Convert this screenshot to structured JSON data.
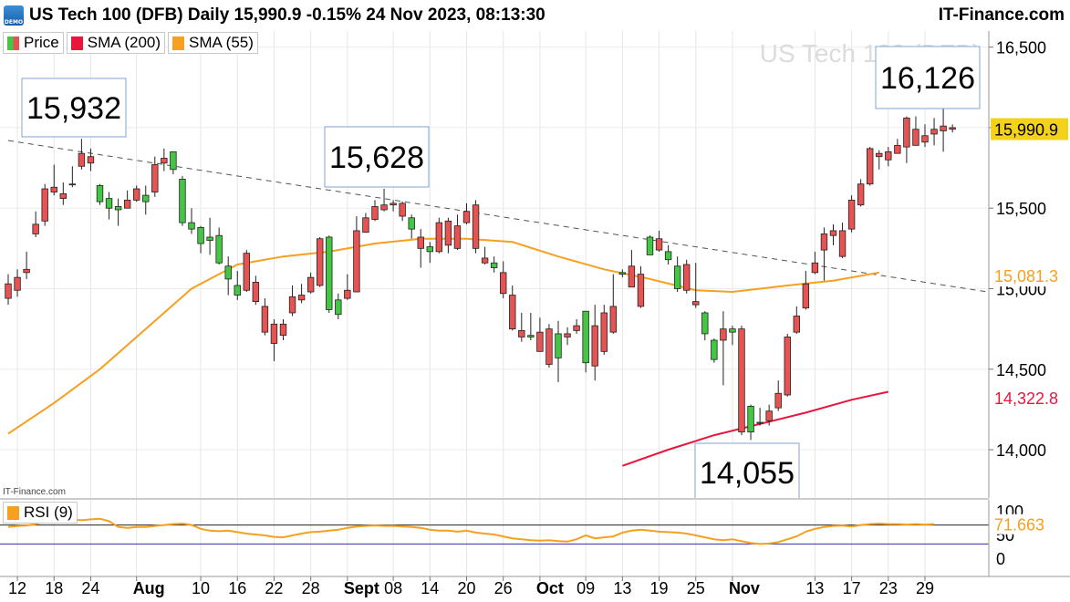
{
  "header": {
    "title": "US Tech 100 (DFB) Daily 15,990.9 -0.15% 24 Nov 2023, 08:13:30",
    "brand": "IT-Finance.com",
    "demo_badge": "DEMO"
  },
  "legend": {
    "price": "Price",
    "sma200": "SMA (200)",
    "sma55": "SMA (55)",
    "rsi": "RSI (9)"
  },
  "watermark": "US Tech 100 (DFB)",
  "copyright": "IT-Finance.com",
  "colors": {
    "up": "#43c743",
    "down": "#e55353",
    "sma200": "#e8163c",
    "sma55": "#f5a020",
    "rsi": "#f5a020",
    "last_price_bg": "#f5d21a"
  },
  "chart_data": {
    "type": "candlestick",
    "y_range": [
      13700,
      16600
    ],
    "y_ticks": [
      14000,
      14500,
      15000,
      15500,
      16000,
      16500
    ],
    "y_tick_labels": [
      "14,000",
      "14,500",
      "15,000",
      "15,500",
      "16,000",
      "16,500"
    ],
    "x_labels": [
      {
        "label": "12",
        "i": 1
      },
      {
        "label": "18",
        "i": 5
      },
      {
        "label": "24",
        "i": 9
      },
      {
        "label": "Aug",
        "i": 14
      },
      {
        "label": "10",
        "i": 21
      },
      {
        "label": "16",
        "i": 25
      },
      {
        "label": "22",
        "i": 29
      },
      {
        "label": "28",
        "i": 33
      },
      {
        "label": "Sept",
        "i": 37
      },
      {
        "label": "08",
        "i": 42
      },
      {
        "label": "14",
        "i": 46
      },
      {
        "label": "20",
        "i": 50
      },
      {
        "label": "26",
        "i": 54
      },
      {
        "label": "Oct",
        "i": 58
      },
      {
        "label": "09",
        "i": 63
      },
      {
        "label": "13",
        "i": 67
      },
      {
        "label": "19",
        "i": 71
      },
      {
        "label": "25",
        "i": 75
      },
      {
        "label": "Nov",
        "i": 79
      },
      {
        "label": "13",
        "i": 88
      },
      {
        "label": "17",
        "i": 92
      },
      {
        "label": "23",
        "i": 96
      },
      {
        "label": "29",
        "i": 100
      }
    ],
    "candles": [
      [
        15030,
        15090,
        14900,
        14940
      ],
      [
        15070,
        15120,
        14950,
        14990
      ],
      [
        15120,
        15230,
        15060,
        15100
      ],
      [
        15400,
        15480,
        15320,
        15340
      ],
      [
        15620,
        15650,
        15390,
        15420
      ],
      [
        15630,
        15770,
        15580,
        15600
      ],
      [
        15590,
        15660,
        15520,
        15560
      ],
      [
        15650,
        15760,
        15630,
        15650
      ],
      [
        15840,
        15930,
        15740,
        15760
      ],
      [
        15820,
        15870,
        15730,
        15780
      ],
      [
        15540,
        15650,
        15520,
        15640
      ],
      [
        15500,
        15600,
        15430,
        15560
      ],
      [
        15490,
        15560,
        15390,
        15510
      ],
      [
        15550,
        15610,
        15500,
        15500
      ],
      [
        15620,
        15640,
        15540,
        15550
      ],
      [
        15540,
        15640,
        15460,
        15580
      ],
      [
        15770,
        15820,
        15570,
        15600
      ],
      [
        15810,
        15870,
        15730,
        15780
      ],
      [
        15740,
        15850,
        15710,
        15850
      ],
      [
        15410,
        15700,
        15390,
        15680
      ],
      [
        15370,
        15500,
        15340,
        15410
      ],
      [
        15280,
        15390,
        15220,
        15380
      ],
      [
        15300,
        15440,
        15210,
        15320
      ],
      [
        15160,
        15380,
        15150,
        15330
      ],
      [
        15060,
        15200,
        14960,
        15140
      ],
      [
        14960,
        15110,
        14930,
        15020
      ],
      [
        15220,
        15240,
        14980,
        14990
      ],
      [
        15040,
        15080,
        14900,
        14920
      ],
      [
        14890,
        14940,
        14710,
        14730
      ],
      [
        14780,
        14810,
        14550,
        14660
      ],
      [
        14780,
        14810,
        14680,
        14710
      ],
      [
        14950,
        15020,
        14830,
        14850
      ],
      [
        14960,
        15030,
        14910,
        14930
      ],
      [
        15070,
        15100,
        14970,
        14980
      ],
      [
        15310,
        15320,
        15010,
        15020
      ],
      [
        14870,
        15330,
        14850,
        15320
      ],
      [
        14840,
        14970,
        14810,
        14930
      ],
      [
        14990,
        15090,
        14930,
        14940
      ],
      [
        15360,
        15450,
        14980,
        14980
      ],
      [
        15440,
        15470,
        15350,
        15350
      ],
      [
        15510,
        15550,
        15420,
        15430
      ],
      [
        15520,
        15620,
        15480,
        15490
      ],
      [
        15530,
        15550,
        15480,
        15520
      ],
      [
        15530,
        15540,
        15420,
        15450
      ],
      [
        15370,
        15460,
        15310,
        15440
      ],
      [
        15320,
        15370,
        15130,
        15250
      ],
      [
        15230,
        15290,
        15160,
        15260
      ],
      [
        15410,
        15440,
        15220,
        15230
      ],
      [
        15420,
        15440,
        15220,
        15270
      ],
      [
        15390,
        15460,
        15240,
        15250
      ],
      [
        15480,
        15530,
        15400,
        15410
      ],
      [
        15520,
        15550,
        15220,
        15250
      ],
      [
        15190,
        15260,
        15150,
        15160
      ],
      [
        15130,
        15200,
        15100,
        15160
      ],
      [
        15100,
        15170,
        14940,
        14970
      ],
      [
        14960,
        15020,
        14740,
        14750
      ],
      [
        14740,
        14850,
        14670,
        14700
      ],
      [
        14700,
        14850,
        14680,
        14710
      ],
      [
        14730,
        14820,
        14620,
        14610
      ],
      [
        14750,
        14780,
        14510,
        14530
      ],
      [
        14570,
        14800,
        14420,
        14720
      ],
      [
        14720,
        14760,
        14650,
        14700
      ],
      [
        14770,
        14810,
        14720,
        14740
      ],
      [
        14540,
        14860,
        14480,
        14860
      ],
      [
        14770,
        14900,
        14430,
        14520
      ],
      [
        14850,
        14900,
        14590,
        14610
      ],
      [
        14890,
        15090,
        14720,
        14730
      ],
      [
        15090,
        15120,
        15070,
        15100
      ],
      [
        15140,
        15240,
        15010,
        15010
      ],
      [
        15090,
        15140,
        14880,
        14890
      ],
      [
        15210,
        15330,
        15210,
        15320
      ],
      [
        15310,
        15360,
        15230,
        15240
      ],
      [
        15180,
        15270,
        15150,
        15230
      ],
      [
        15000,
        15200,
        14980,
        15140
      ],
      [
        15150,
        15180,
        14970,
        14990
      ],
      [
        14920,
        15160,
        14880,
        14900
      ],
      [
        14720,
        14860,
        14680,
        14850
      ],
      [
        14560,
        14690,
        14540,
        14680
      ],
      [
        14750,
        14860,
        14400,
        14680
      ],
      [
        14730,
        14770,
        14650,
        14750
      ],
      [
        14750,
        14770,
        14090,
        14110
      ],
      [
        14110,
        14280,
        14060,
        14270
      ],
      [
        14170,
        14260,
        14150,
        14170
      ],
      [
        14240,
        14280,
        14150,
        14180
      ],
      [
        14350,
        14430,
        14240,
        14260
      ],
      [
        14700,
        14720,
        14330,
        14340
      ],
      [
        14830,
        14890,
        14720,
        14730
      ],
      [
        15030,
        15110,
        14870,
        14880
      ],
      [
        15160,
        15230,
        15090,
        15100
      ],
      [
        15340,
        15380,
        15050,
        15240
      ],
      [
        15360,
        15400,
        15270,
        15330
      ],
      [
        15360,
        15410,
        15190,
        15200
      ],
      [
        15550,
        15580,
        15350,
        15370
      ],
      [
        15650,
        15680,
        15510,
        15520
      ],
      [
        15870,
        15880,
        15640,
        15650
      ],
      [
        15840,
        15860,
        15740,
        15820
      ],
      [
        15850,
        15880,
        15760,
        15800
      ],
      [
        15890,
        15930,
        15850,
        15840
      ],
      [
        16060,
        16070,
        15780,
        15880
      ],
      [
        15990,
        16070,
        15890,
        15890
      ],
      [
        15950,
        16020,
        15880,
        15910
      ],
      [
        15990,
        16060,
        15890,
        15960
      ],
      [
        16010,
        16120,
        15850,
        15980
      ],
      [
        16000,
        16020,
        15970,
        15990
      ]
    ],
    "sma55": [
      [
        0,
        14100
      ],
      [
        5,
        14290
      ],
      [
        10,
        14500
      ],
      [
        15,
        14750
      ],
      [
        20,
        15000
      ],
      [
        25,
        15150
      ],
      [
        30,
        15200
      ],
      [
        35,
        15230
      ],
      [
        40,
        15280
      ],
      [
        45,
        15310
      ],
      [
        50,
        15310
      ],
      [
        55,
        15290
      ],
      [
        60,
        15200
      ],
      [
        65,
        15120
      ],
      [
        70,
        15060
      ],
      [
        75,
        14990
      ],
      [
        79,
        14980
      ],
      [
        85,
        15020
      ],
      [
        90,
        15050
      ],
      [
        95,
        15100
      ]
    ],
    "sma55_last": "15,081.3",
    "sma200": [
      [
        67,
        13900
      ],
      [
        72,
        14000
      ],
      [
        77,
        14090
      ],
      [
        82,
        14160
      ],
      [
        87,
        14230
      ],
      [
        92,
        14310
      ],
      [
        96,
        14360
      ]
    ],
    "sma200_last": "14,322.8",
    "trendline": {
      "from": [
        0,
        15920
      ],
      "to": [
        100,
        15040
      ]
    },
    "last_price": "15,990.9",
    "annotations": [
      {
        "label": "15,932",
        "i": 7,
        "value": 15932
      },
      {
        "label": "15,628",
        "i": 39,
        "value": 15628
      },
      {
        "label": "16,126",
        "i": 96,
        "value": 16126
      },
      {
        "label": "14,055",
        "i": 80,
        "value": 14055
      }
    ],
    "rsi": {
      "y_range": [
        0,
        100
      ],
      "y_ticks": [
        0,
        50,
        100
      ],
      "y_tick_labels": [
        "0",
        "50",
        "100"
      ],
      "levels": [
        70,
        30
      ],
      "last": "71.663",
      "values": [
        66,
        68,
        69,
        72,
        79,
        80,
        81,
        82,
        80,
        82,
        83,
        78,
        66,
        64,
        66,
        66,
        68,
        70,
        72,
        73,
        70,
        62,
        58,
        57,
        58,
        55,
        52,
        50,
        48,
        45,
        44,
        48,
        52,
        55,
        56,
        58,
        60,
        64,
        67,
        68,
        69,
        68,
        68,
        67,
        66,
        64,
        60,
        58,
        58,
        56,
        58,
        54,
        52,
        50,
        46,
        42,
        40,
        38,
        37,
        38,
        36,
        35,
        40,
        48,
        42,
        44,
        46,
        54,
        58,
        60,
        58,
        56,
        55,
        54,
        52,
        48,
        44,
        40,
        38,
        40,
        36,
        32,
        30,
        31,
        34,
        40,
        46,
        56,
        62,
        66,
        68,
        69,
        67,
        70,
        72,
        73,
        72,
        72,
        71,
        72,
        71,
        72
      ]
    }
  }
}
